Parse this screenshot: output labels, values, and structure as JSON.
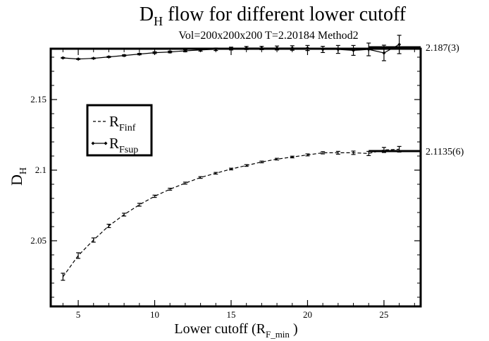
{
  "chart_data": {
    "type": "line",
    "title": {
      "main": "D",
      "sub": "H",
      "rest": " flow for different lower cutoff"
    },
    "subtitle": "Vol=200x200x200 T=2.20184   Method2",
    "xlabel": {
      "main": "Lower cutoff (R",
      "sub": "F_min",
      "rest": " )"
    },
    "ylabel": {
      "main": "D",
      "sub": "H"
    },
    "xlim": [
      3.2,
      27.4
    ],
    "ylim": [
      2.0035,
      2.186
    ],
    "xticks": [
      {
        "value": 5,
        "label": "5"
      },
      {
        "value": 10,
        "label": "10"
      },
      {
        "value": 15,
        "label": "15"
      },
      {
        "value": 20,
        "label": "20"
      },
      {
        "value": 25,
        "label": "25"
      }
    ],
    "yticks": [
      {
        "value": 2.05,
        "label": "2.05"
      },
      {
        "value": 2.1,
        "label": "2.1"
      },
      {
        "value": 2.15,
        "label": "2.15"
      }
    ],
    "grid": false,
    "legend": {
      "placement": "upper-left",
      "entries": [
        {
          "main": "R",
          "sub": "Finf",
          "style": "dashed"
        },
        {
          "main": "R",
          "sub": "Fsup",
          "style": "solid-diamond"
        }
      ]
    },
    "series": [
      {
        "key": "Finf",
        "style": "dashed",
        "x": [
          4,
          5,
          6,
          7,
          8,
          9,
          10,
          11,
          12,
          13,
          14,
          15,
          16,
          17,
          18,
          19,
          20,
          21,
          22,
          23,
          24,
          25,
          26
        ],
        "y": [
          2.0245,
          2.0395,
          2.0505,
          2.0605,
          2.0685,
          2.0755,
          2.0815,
          2.0865,
          2.0908,
          2.0948,
          2.0978,
          2.1008,
          2.1033,
          2.1058,
          2.1078,
          2.1093,
          2.1108,
          2.1123,
          2.1123,
          2.1123,
          2.1118,
          2.1143,
          2.1148
        ],
        "err": [
          0.0025,
          0.002,
          0.0015,
          0.0012,
          0.001,
          0.001,
          0.0008,
          0.0007,
          0.0007,
          0.0006,
          0.0006,
          0.0006,
          0.0006,
          0.0006,
          0.0006,
          0.0006,
          0.0007,
          0.0008,
          0.001,
          0.0012,
          0.0015,
          0.0018,
          0.002
        ]
      },
      {
        "key": "Fsup",
        "style": "solid-diamond",
        "x": [
          4,
          5,
          6,
          7,
          8,
          9,
          10,
          11,
          12,
          13,
          14,
          15,
          16,
          17,
          18,
          19,
          20,
          21,
          22,
          23,
          24,
          25,
          26
        ],
        "y": [
          2.1795,
          2.1787,
          2.1792,
          2.1802,
          2.1812,
          2.1822,
          2.1832,
          2.1837,
          2.1845,
          2.1851,
          2.1856,
          2.1861,
          2.1865,
          2.1865,
          2.1865,
          2.1865,
          2.1865,
          2.1855,
          2.1855,
          2.1848,
          2.1855,
          2.183,
          2.189
        ],
        "err": [
          0.0003,
          0.0003,
          0.0003,
          0.0004,
          0.0005,
          0.0005,
          0.0006,
          0.0006,
          0.0007,
          0.0008,
          0.0009,
          0.001,
          0.0011,
          0.0012,
          0.0014,
          0.0016,
          0.0018,
          0.0022,
          0.0028,
          0.0035,
          0.0045,
          0.0055,
          0.0065
        ]
      }
    ],
    "fit_lines": [
      {
        "value": 2.187,
        "label": "2.187(3)",
        "x_range": [
          24,
          27.4
        ]
      },
      {
        "value": 2.1135,
        "label": "2.1135(6)",
        "x_range": [
          24,
          27.4
        ]
      }
    ]
  }
}
